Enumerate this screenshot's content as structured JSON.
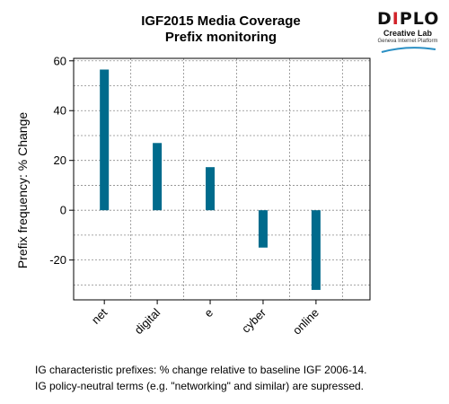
{
  "logo": {
    "brand_prefix": "D",
    "brand_accent": "I",
    "brand_suffix": "PLO",
    "lab": "Creative Lab",
    "platform": "Geneva Internet Platform",
    "accent_color": "#d2232a",
    "swoosh_color": "#2a8fc4"
  },
  "chart_data": {
    "type": "bar",
    "title": "IGF2015 Media Coverage",
    "subtitle": "Prefix monitoring",
    "ylabel": "Prefix frequency: % Change",
    "xlabel": "",
    "categories": [
      "net",
      "digital",
      "e",
      "cyber",
      "online"
    ],
    "values": [
      56.5,
      27,
      17.3,
      -15,
      -32
    ],
    "ylim": [
      -36,
      61
    ],
    "yticks": [
      60,
      40,
      20,
      0,
      -20
    ],
    "grid": true,
    "bar_color": "#006b8c"
  },
  "notes": [
    "IG characteristic prefixes: % change relative to baseline IGF 2006-14.",
    "IG policy-neutral terms (e.g. \"networking\" and similar) are supressed."
  ]
}
